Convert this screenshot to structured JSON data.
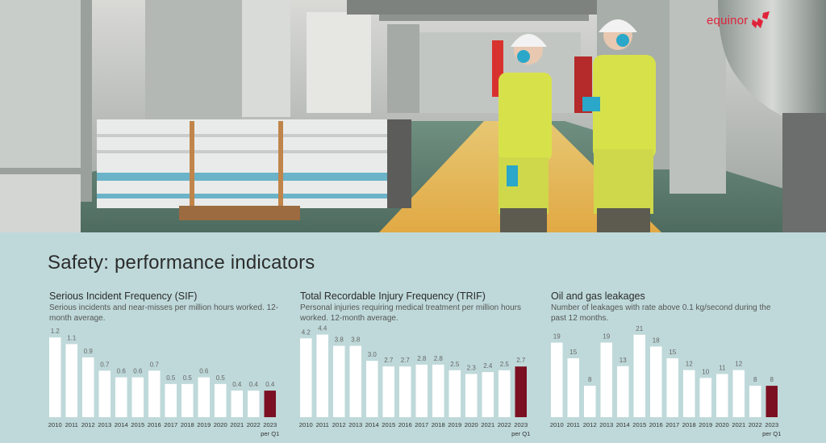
{
  "brand": {
    "name": "equinor",
    "accent_color": "#e0233b",
    "icon": "equinor-star-logo"
  },
  "panel": {
    "title": "Safety: performance indicators",
    "background_color": "#bfd9da",
    "bar_color": "#ffffff",
    "highlight_color": "#7b1022"
  },
  "chart_data": [
    {
      "type": "bar",
      "title": "Serious Incident Frequency (SIF)",
      "subtitle": "Serious incidents and near-misses per million hours worked. 12-month average.",
      "categories": [
        "2010",
        "2011",
        "2012",
        "2013",
        "2014",
        "2015",
        "2016",
        "2017",
        "2018",
        "2019",
        "2020",
        "2021",
        "2022",
        "2023"
      ],
      "category_sub": [
        "",
        "",
        "",
        "",
        "",
        "",
        "",
        "",
        "",
        "",
        "",
        "",
        "",
        "per Q1"
      ],
      "values": [
        1.2,
        1.1,
        0.9,
        0.7,
        0.6,
        0.6,
        0.7,
        0.5,
        0.5,
        0.6,
        0.5,
        0.4,
        0.4,
        0.4
      ],
      "value_labels": [
        "1.2",
        "1.1",
        "0.9",
        "0.7",
        "0.6",
        "0.6",
        "0.7",
        "0.5",
        "0.5",
        "0.6",
        "0.5",
        "0.4",
        "0.4",
        "0.4"
      ],
      "highlight_index": 13,
      "ylim": [
        0,
        1.3
      ]
    },
    {
      "type": "bar",
      "title": "Total Recordable Injury Frequency (TRIF)",
      "subtitle": "Personal injuries requiring medical treatment per million hours worked. 12-month average.",
      "categories": [
        "2010",
        "2011",
        "2012",
        "2013",
        "2014",
        "2015",
        "2016",
        "2017",
        "2018",
        "2019",
        "2020",
        "2021",
        "2022",
        "2023"
      ],
      "category_sub": [
        "",
        "",
        "",
        "",
        "",
        "",
        "",
        "",
        "",
        "",
        "",
        "",
        "",
        "per Q1"
      ],
      "values": [
        4.2,
        4.4,
        3.8,
        3.8,
        3.0,
        2.7,
        2.7,
        2.8,
        2.8,
        2.5,
        2.3,
        2.4,
        2.5,
        2.7
      ],
      "value_labels": [
        "4.2",
        "4.4",
        "3.8",
        "3.8",
        "3.0",
        "2.7",
        "2.7",
        "2.8",
        "2.8",
        "2.5",
        "2.3",
        "2.4",
        "2.5",
        "2.7"
      ],
      "highlight_index": 13,
      "ylim": [
        0,
        4.6
      ]
    },
    {
      "type": "bar",
      "title": "Oil and gas leakages",
      "subtitle": "Number of leakages with rate above 0.1 kg/second during the past 12 months.",
      "categories": [
        "2010",
        "2011",
        "2012",
        "2013",
        "2014",
        "2015",
        "2016",
        "2017",
        "2018",
        "2019",
        "2020",
        "2021",
        "2022",
        "2023"
      ],
      "category_sub": [
        "",
        "",
        "",
        "",
        "",
        "",
        "",
        "",
        "",
        "",
        "",
        "",
        "",
        "per Q1"
      ],
      "values": [
        19,
        15,
        8,
        19,
        13,
        21,
        18,
        15,
        12,
        10,
        11,
        12,
        8,
        8
      ],
      "value_labels": [
        "19",
        "15",
        "8",
        "19",
        "13",
        "21",
        "18",
        "15",
        "12",
        "10",
        "11",
        "12",
        "8",
        "8"
      ],
      "highlight_index": 13,
      "ylim": [
        0,
        22
      ]
    }
  ]
}
